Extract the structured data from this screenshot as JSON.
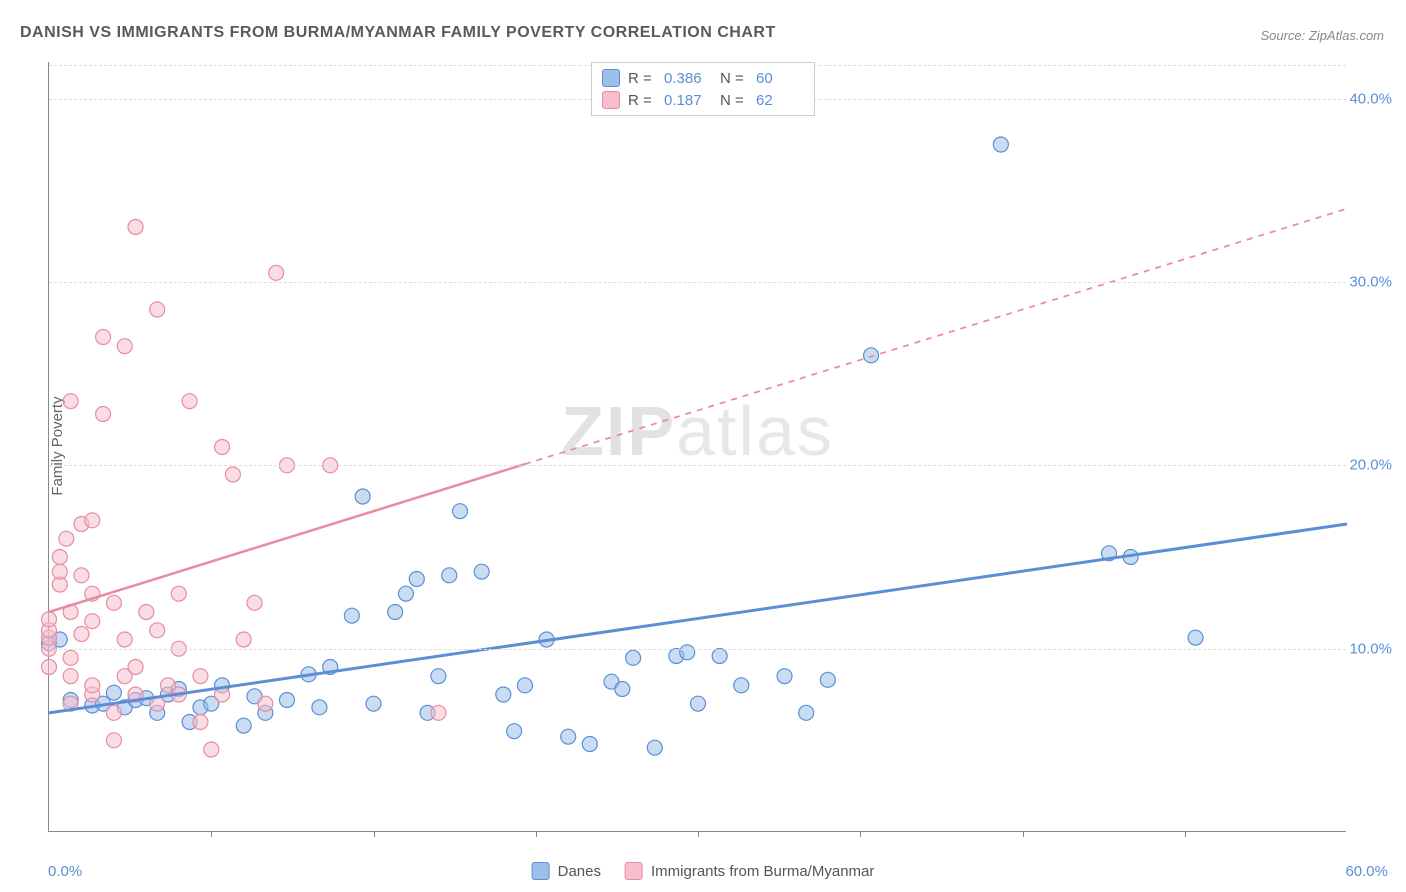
{
  "title": "DANISH VS IMMIGRANTS FROM BURMA/MYANMAR FAMILY POVERTY CORRELATION CHART",
  "source": "Source: ZipAtlas.com",
  "ylabel": "Family Poverty",
  "watermark_a": "ZIP",
  "watermark_b": "atlas",
  "chart": {
    "type": "scatter",
    "xlim": [
      0,
      60
    ],
    "ylim": [
      0,
      42
    ],
    "yticks": [
      10,
      20,
      30,
      40
    ],
    "ytick_labels": [
      "10.0%",
      "20.0%",
      "30.0%",
      "40.0%"
    ],
    "xtick_zero": "0.0%",
    "xtick_max": "60.0%",
    "xtick_marks": [
      7.5,
      15,
      22.5,
      30,
      37.5,
      45,
      52.5
    ],
    "marker_radius": 7.5,
    "marker_opacity": 0.55,
    "background_color": "#ffffff",
    "grid_color": "#dddddd",
    "axis_color": "#888888",
    "series": [
      {
        "name": "Danes",
        "color_fill": "#9cc0e7",
        "color_stroke": "#5a8fd6",
        "R": "0.386",
        "N": "60",
        "trend": {
          "x1": 0,
          "y1": 6.5,
          "x2": 60,
          "y2": 16.8,
          "solid_to_x": 60,
          "stroke_width": 3
        },
        "points": [
          [
            0,
            10.3
          ],
          [
            0.5,
            10.5
          ],
          [
            1,
            7.2
          ],
          [
            2,
            6.9
          ],
          [
            2.5,
            7.0
          ],
          [
            3,
            7.6
          ],
          [
            3.5,
            6.8
          ],
          [
            4,
            7.2
          ],
          [
            4.5,
            7.3
          ],
          [
            5,
            6.5
          ],
          [
            5.5,
            7.5
          ],
          [
            6,
            7.8
          ],
          [
            6.5,
            6.0
          ],
          [
            7,
            6.8
          ],
          [
            7.5,
            7.0
          ],
          [
            8,
            8.0
          ],
          [
            9,
            5.8
          ],
          [
            9.5,
            7.4
          ],
          [
            10,
            6.5
          ],
          [
            11,
            7.2
          ],
          [
            12,
            8.6
          ],
          [
            12.5,
            6.8
          ],
          [
            13,
            9.0
          ],
          [
            14,
            11.8
          ],
          [
            14.5,
            18.3
          ],
          [
            15,
            7.0
          ],
          [
            16,
            12.0
          ],
          [
            16.5,
            13.0
          ],
          [
            17,
            13.8
          ],
          [
            17.5,
            6.5
          ],
          [
            18,
            8.5
          ],
          [
            18.5,
            14.0
          ],
          [
            19,
            17.5
          ],
          [
            20,
            14.2
          ],
          [
            21,
            7.5
          ],
          [
            21.5,
            5.5
          ],
          [
            22,
            8.0
          ],
          [
            23,
            10.5
          ],
          [
            24,
            5.2
          ],
          [
            25,
            4.8
          ],
          [
            26,
            8.2
          ],
          [
            26.5,
            7.8
          ],
          [
            27,
            9.5
          ],
          [
            28,
            4.6
          ],
          [
            29,
            9.6
          ],
          [
            29.5,
            9.8
          ],
          [
            30,
            7.0
          ],
          [
            31,
            9.6
          ],
          [
            32,
            8.0
          ],
          [
            34,
            8.5
          ],
          [
            35,
            6.5
          ],
          [
            36,
            8.3
          ],
          [
            38,
            26.0
          ],
          [
            44,
            37.5
          ],
          [
            49,
            15.2
          ],
          [
            50,
            15.0
          ],
          [
            53,
            10.6
          ]
        ]
      },
      {
        "name": "Immigrants from Burma/Myanmar",
        "color_fill": "#f5c0cc",
        "color_stroke": "#e88ba3",
        "R": "0.187",
        "N": "62",
        "trend": {
          "x1": 0,
          "y1": 12.0,
          "x2": 60,
          "y2": 34.0,
          "solid_to_x": 22,
          "stroke_width": 2.5
        },
        "points": [
          [
            0,
            9.0
          ],
          [
            0,
            10.0
          ],
          [
            0,
            10.6
          ],
          [
            0,
            11.0
          ],
          [
            0,
            11.6
          ],
          [
            0.5,
            13.5
          ],
          [
            0.5,
            14.2
          ],
          [
            0.5,
            15.0
          ],
          [
            0.8,
            16.0
          ],
          [
            1,
            7.0
          ],
          [
            1,
            8.5
          ],
          [
            1,
            9.5
          ],
          [
            1,
            12.0
          ],
          [
            1,
            23.5
          ],
          [
            1.5,
            10.8
          ],
          [
            1.5,
            14.0
          ],
          [
            1.5,
            16.8
          ],
          [
            2,
            7.5
          ],
          [
            2,
            8.0
          ],
          [
            2,
            11.5
          ],
          [
            2,
            13.0
          ],
          [
            2,
            17.0
          ],
          [
            2.5,
            22.8
          ],
          [
            2.5,
            27.0
          ],
          [
            3,
            5.0
          ],
          [
            3,
            6.5
          ],
          [
            3,
            12.5
          ],
          [
            3.5,
            8.5
          ],
          [
            3.5,
            10.5
          ],
          [
            3.5,
            26.5
          ],
          [
            4,
            7.5
          ],
          [
            4,
            9.0
          ],
          [
            4,
            33.0
          ],
          [
            4.5,
            12.0
          ],
          [
            5,
            7.0
          ],
          [
            5,
            11.0
          ],
          [
            5,
            28.5
          ],
          [
            5.5,
            8.0
          ],
          [
            6,
            7.5
          ],
          [
            6,
            10.0
          ],
          [
            6,
            13.0
          ],
          [
            6.5,
            23.5
          ],
          [
            7,
            6.0
          ],
          [
            7,
            8.5
          ],
          [
            7.5,
            4.5
          ],
          [
            8,
            7.5
          ],
          [
            8,
            21.0
          ],
          [
            8.5,
            19.5
          ],
          [
            9,
            10.5
          ],
          [
            9.5,
            12.5
          ],
          [
            10,
            7.0
          ],
          [
            10.5,
            30.5
          ],
          [
            11,
            20.0
          ],
          [
            13,
            20.0
          ],
          [
            18,
            6.5
          ]
        ]
      }
    ]
  },
  "legend_bottom": [
    {
      "label": "Danes",
      "fill": "#9cc0e7",
      "stroke": "#5a8fd6"
    },
    {
      "label": "Immigrants from Burma/Myanmar",
      "fill": "#f5c0cc",
      "stroke": "#e88ba3"
    }
  ],
  "legend_top_labels": {
    "R": "R =",
    "N": "N ="
  }
}
